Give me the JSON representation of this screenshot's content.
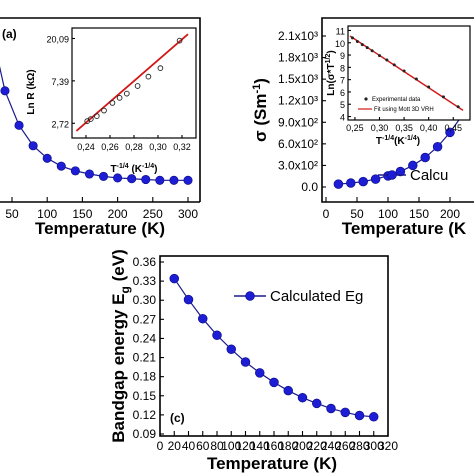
{
  "colors": {
    "marker": "#1d1dd6",
    "line": "#1a1a90",
    "fit": "#d01818",
    "inset_pt": "#222222"
  },
  "panel_a": {
    "tag": "(a)",
    "xlabel": "Temperature  (K)",
    "xticks": [
      "50",
      "100",
      "150",
      "200",
      "250",
      "300"
    ],
    "inset": {
      "ylabel": "Ln R  (kΩ)",
      "yticks": [
        "20,09",
        "7,39",
        "2,72"
      ],
      "xticks": [
        "0,24",
        "0,26",
        "0,28",
        "0,30",
        "0,32"
      ],
      "xlabel": "T ^{-1/4} (K^{-1/4})"
    }
  },
  "panel_b": {
    "ylabel": "σ (Sm⁻¹)",
    "yticks": [
      "2.1x10³",
      "1.8x10³",
      "1.5x10³",
      "1.2x10³",
      "9.0x10²",
      "6.0x10²",
      "3.0x10²",
      "0.0"
    ],
    "xticks": [
      "0",
      "50",
      "100",
      "150",
      "200"
    ],
    "xlabel": "Temperature  (K",
    "legend": "Calcu",
    "inset": {
      "ylabel": "Ln(σ*T^1/2)",
      "yticks": [
        "11",
        "10",
        "9",
        "8",
        "7",
        "6",
        "5",
        "4"
      ],
      "xticks": [
        "0,25",
        "0,30",
        "0,35",
        "0,40",
        "0,45"
      ],
      "xlabel": "T^{-1/4}(K^{-1/4})",
      "legend_points": "Experimental data",
      "legend_fit": "Fit using Mott 3D VRH"
    }
  },
  "panel_c": {
    "tag": "(c)",
    "ylabel": "Bandgap energy E",
    "ylabel_sub": "g",
    "ylabel_unit": "(eV)",
    "xlabel": "Temperature  (K)",
    "legend": "Calculated Eg",
    "yticks": [
      "0.36",
      "0.33",
      "0.30",
      "0.27",
      "0.24",
      "0.21",
      "0.18",
      "0.15",
      "0.12",
      "0.09"
    ],
    "xticks": [
      "0",
      "20",
      "40",
      "60",
      "80",
      "100",
      "120",
      "140",
      "160",
      "180",
      "200",
      "220",
      "240",
      "260",
      "280",
      "300",
      "320"
    ]
  },
  "chart_data": [
    {
      "type": "line",
      "title": "(a)",
      "xlabel": "Temperature (K)",
      "ylabel": "",
      "xlim": [
        25,
        310
      ],
      "x": [
        20,
        40,
        60,
        80,
        100,
        120,
        140,
        160,
        180,
        200,
        220,
        240,
        260,
        280,
        300
      ],
      "series": [
        {
          "values": [
            1.0,
            0.6,
            0.38,
            0.25,
            0.17,
            0.12,
            0.09,
            0.07,
            0.055,
            0.045,
            0.04,
            0.035,
            0.03,
            0.03,
            0.03
          ]
        }
      ],
      "inset": {
        "type": "scatter",
        "xlabel": "T^-1/4 (K^-1/4)",
        "ylabel": "Ln R (kΩ)",
        "xlim": [
          0.23,
          0.33
        ],
        "ylim": [
          0.7,
          3.2
        ],
        "x": [
          0.241,
          0.244,
          0.249,
          0.255,
          0.262,
          0.268,
          0.274,
          0.283,
          0.292,
          0.302,
          0.318
        ],
        "values": [
          1.05,
          1.1,
          1.17,
          1.3,
          1.48,
          1.6,
          1.7,
          1.88,
          2.1,
          2.3,
          2.95
        ],
        "fit": {
          "x": [
            0.232,
            0.325
          ],
          "y": [
            0.82,
            3.1
          ]
        }
      }
    },
    {
      "type": "line",
      "xlabel": "Temperature (K)",
      "ylabel": "σ (Sm⁻¹)",
      "xlim": [
        0,
        230
      ],
      "ylim": [
        -70,
        2200
      ],
      "x": [
        20,
        40,
        60,
        80,
        100,
        120,
        140,
        160,
        180,
        200,
        220
      ],
      "series": [
        {
          "name": "Calcu",
          "values": [
            40,
            55,
            75,
            110,
            155,
            215,
            300,
            410,
            560,
            760,
            1000
          ]
        }
      ],
      "inset": {
        "type": "scatter",
        "xlabel": "T^-1/4 (K^-1/4)",
        "ylabel": "Ln(σ*T^1/2)",
        "xlim": [
          0.24,
          0.48
        ],
        "ylim": [
          3.8,
          11.2
        ],
        "x": [
          0.245,
          0.255,
          0.265,
          0.275,
          0.285,
          0.3,
          0.315,
          0.33,
          0.35,
          0.375,
          0.4,
          0.43,
          0.46
        ],
        "values": [
          10.4,
          10.1,
          9.85,
          9.6,
          9.35,
          8.95,
          8.6,
          8.2,
          7.7,
          7.05,
          6.4,
          5.6,
          4.8
        ],
        "fit": {
          "x": [
            0.24,
            0.47
          ],
          "y": [
            10.55,
            4.5
          ]
        }
      }
    },
    {
      "type": "line",
      "title": "(c)",
      "xlabel": "Temperature (K)",
      "ylabel": "Bandgap energy Eg (eV)",
      "xlim": [
        0,
        320
      ],
      "ylim": [
        0.09,
        0.36
      ],
      "x": [
        20,
        40,
        60,
        80,
        100,
        120,
        140,
        160,
        180,
        200,
        220,
        240,
        260,
        280,
        300
      ],
      "series": [
        {
          "name": "Calculated Eg",
          "values": [
            0.334,
            0.301,
            0.271,
            0.245,
            0.223,
            0.203,
            0.186,
            0.171,
            0.158,
            0.147,
            0.138,
            0.13,
            0.124,
            0.119,
            0.117
          ]
        }
      ]
    }
  ]
}
